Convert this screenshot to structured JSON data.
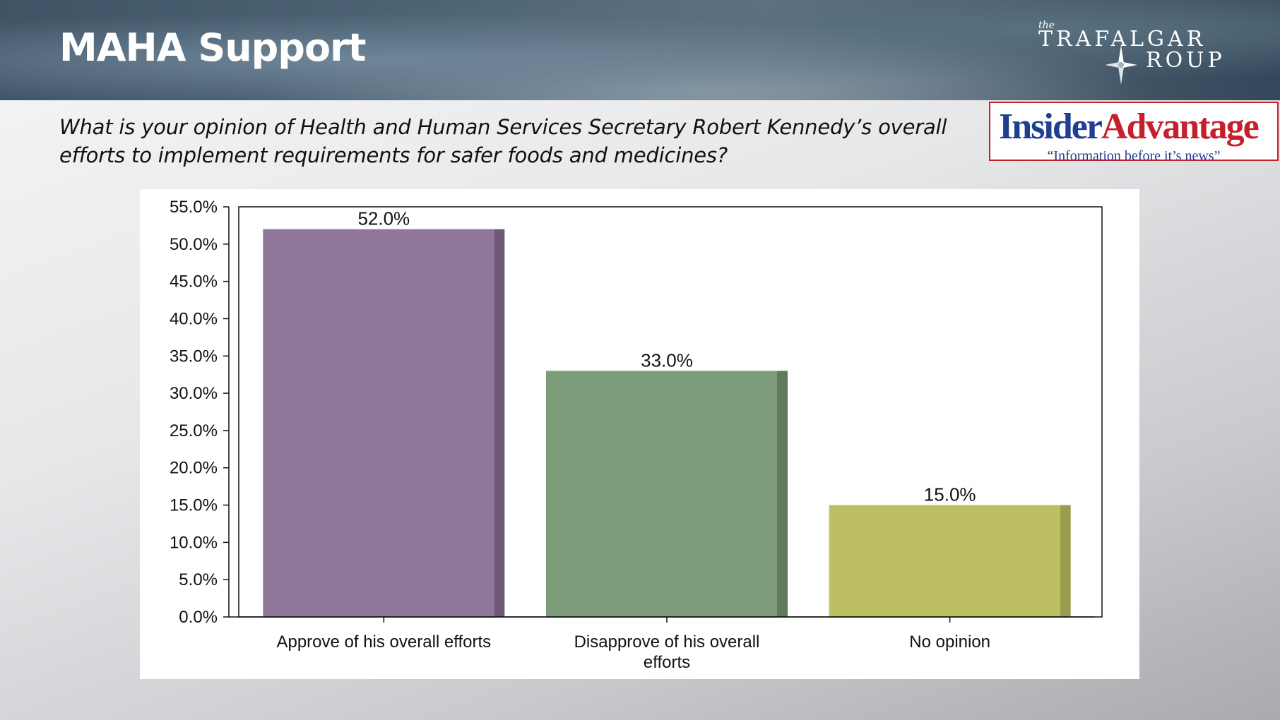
{
  "header": {
    "title": "MAHA Support",
    "logo_the": "the",
    "logo_line1": "TRAFALGAR",
    "logo_line2": "ROUP"
  },
  "question": "What is your opinion of Health and Human Services Secretary Robert Kennedy’s overall efforts to implement requirements for safer foods and medicines?",
  "insider": {
    "name_part1": "Insider",
    "name_part2": "Advantage",
    "tagline": "“Information before it’s news”"
  },
  "chart_data": {
    "type": "bar",
    "categories": [
      "Approve of his overall efforts",
      "Disapprove of his overall efforts",
      "No opinion"
    ],
    "category_lines": [
      [
        "Approve of his overall efforts"
      ],
      [
        "Disapprove of his overall",
        "efforts"
      ],
      [
        "No opinion"
      ]
    ],
    "values": [
      52.0,
      33.0,
      15.0
    ],
    "value_labels": [
      "52.0%",
      "33.0%",
      "15.0%"
    ],
    "colors": [
      "#8e7799",
      "#7c9b79",
      "#bcc063"
    ],
    "shade_colors": [
      "#6e5a78",
      "#5f7a5d",
      "#9a9d4b"
    ],
    "ylim": [
      0,
      55
    ],
    "yticks": [
      0,
      5,
      10,
      15,
      20,
      25,
      30,
      35,
      40,
      45,
      50,
      55
    ],
    "ytick_labels": [
      "0.0%",
      "5.0%",
      "10.0%",
      "15.0%",
      "20.0%",
      "25.0%",
      "30.0%",
      "35.0%",
      "40.0%",
      "45.0%",
      "50.0%",
      "55.0%"
    ],
    "grid": false,
    "legend": "none",
    "title": "",
    "xlabel": "",
    "ylabel": ""
  }
}
